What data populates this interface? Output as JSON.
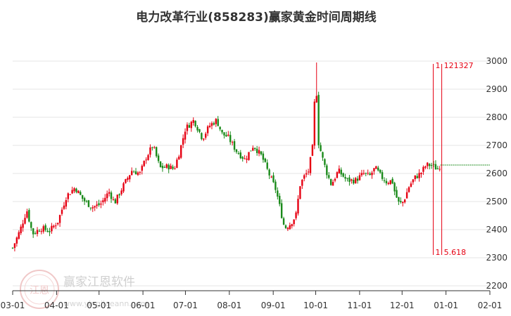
{
  "chart_data": {
    "type": "candlestick",
    "title": "电力改革行业(858283)赢家黄金时间周期线",
    "y_ticks": [
      2200,
      2300,
      2400,
      2500,
      2600,
      2700,
      2800,
      2900,
      3000
    ],
    "ylim": [
      2200,
      3000
    ],
    "x_ticks": [
      "03-01",
      "04-01",
      "05-01",
      "06-01",
      "07-01",
      "08-01",
      "09-01",
      "10-01",
      "11-01",
      "12-01",
      "01-01",
      "02-01"
    ],
    "x_tick_days": [
      0,
      31,
      61,
      92,
      122,
      153,
      184,
      214,
      245,
      275,
      306,
      337
    ],
    "grid": true,
    "colors": {
      "up": "#e60012",
      "down": "#1a8a1a",
      "annotation": "#e60012",
      "grid": "#e6e6e6",
      "last_price_line": "#1a8a1a"
    },
    "last_price": 2630,
    "cycle_lines": [
      {
        "day": 297,
        "top_label": "1",
        "bottom_label": "1"
      },
      {
        "day": 303,
        "top_label": "121327",
        "bottom_label": "5.618"
      }
    ],
    "price_path": [
      [
        0,
        2335
      ],
      [
        5,
        2395
      ],
      [
        10,
        2470
      ],
      [
        14,
        2385
      ],
      [
        20,
        2405
      ],
      [
        26,
        2395
      ],
      [
        32,
        2430
      ],
      [
        38,
        2520
      ],
      [
        44,
        2550
      ],
      [
        50,
        2505
      ],
      [
        56,
        2480
      ],
      [
        62,
        2490
      ],
      [
        68,
        2535
      ],
      [
        72,
        2495
      ],
      [
        78,
        2555
      ],
      [
        84,
        2610
      ],
      [
        90,
        2600
      ],
      [
        94,
        2655
      ],
      [
        99,
        2700
      ],
      [
        104,
        2620
      ],
      [
        110,
        2625
      ],
      [
        114,
        2615
      ],
      [
        118,
        2680
      ],
      [
        122,
        2760
      ],
      [
        128,
        2790
      ],
      [
        134,
        2725
      ],
      [
        139,
        2770
      ],
      [
        144,
        2790
      ],
      [
        148,
        2740
      ],
      [
        152,
        2730
      ],
      [
        158,
        2680
      ],
      [
        164,
        2650
      ],
      [
        170,
        2700
      ],
      [
        176,
        2660
      ],
      [
        180,
        2610
      ],
      [
        186,
        2540
      ],
      [
        190,
        2450
      ],
      [
        192,
        2405
      ],
      [
        196,
        2420
      ],
      [
        200,
        2450
      ],
      [
        203,
        2560
      ],
      [
        206,
        2590
      ],
      [
        209,
        2610
      ],
      [
        212,
        2700
      ],
      [
        214,
        2960
      ],
      [
        216,
        2710
      ],
      [
        219,
        2650
      ],
      [
        222,
        2600
      ],
      [
        225,
        2560
      ],
      [
        230,
        2610
      ],
      [
        236,
        2575
      ],
      [
        242,
        2575
      ],
      [
        248,
        2600
      ],
      [
        252,
        2590
      ],
      [
        256,
        2620
      ],
      [
        260,
        2590
      ],
      [
        264,
        2570
      ],
      [
        268,
        2575
      ],
      [
        270,
        2530
      ],
      [
        273,
        2490
      ],
      [
        276,
        2500
      ],
      [
        280,
        2555
      ],
      [
        284,
        2585
      ],
      [
        288,
        2600
      ],
      [
        292,
        2630
      ],
      [
        296,
        2630
      ],
      [
        300,
        2615
      ],
      [
        302,
        2630
      ]
    ]
  },
  "watermark": {
    "text": "赢家江恩软件",
    "url": "www.yingjiaeann.com",
    "seal_text": "江恩"
  }
}
